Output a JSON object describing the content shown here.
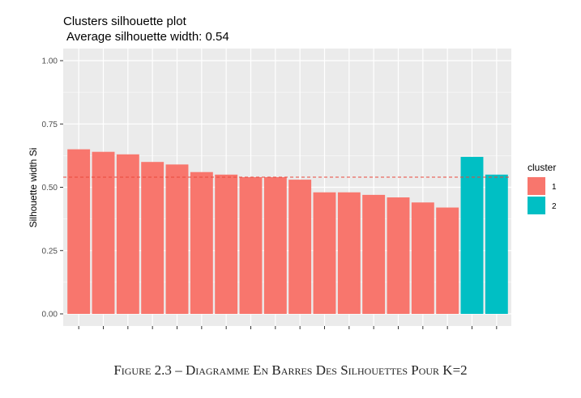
{
  "chart_data": {
    "type": "bar",
    "title": "Clusters silhouette plot",
    "subtitle": "Average silhouette width: 0.54",
    "xlabel": "",
    "ylabel": "Silhouette width Si",
    "ylim": [
      0,
      1
    ],
    "yticks": [
      "0.00",
      "0.25",
      "0.50",
      "0.75",
      "1.00"
    ],
    "ytick_values": [
      0,
      0.25,
      0.5,
      0.75,
      1.0
    ],
    "grid": true,
    "average_line": 0.54,
    "legend": {
      "title": "cluster",
      "position": "right",
      "entries": [
        "1",
        "2"
      ]
    },
    "colors": {
      "1": "#F8766D",
      "2": "#00BFC4",
      "average_line": "#E8483C",
      "panel": "#EBEBEB",
      "grid": "#FFFFFF"
    },
    "bars": [
      {
        "cluster": "1",
        "value": 0.65
      },
      {
        "cluster": "1",
        "value": 0.64
      },
      {
        "cluster": "1",
        "value": 0.63
      },
      {
        "cluster": "1",
        "value": 0.6
      },
      {
        "cluster": "1",
        "value": 0.59
      },
      {
        "cluster": "1",
        "value": 0.56
      },
      {
        "cluster": "1",
        "value": 0.55
      },
      {
        "cluster": "1",
        "value": 0.54
      },
      {
        "cluster": "1",
        "value": 0.54
      },
      {
        "cluster": "1",
        "value": 0.53
      },
      {
        "cluster": "1",
        "value": 0.48
      },
      {
        "cluster": "1",
        "value": 0.48
      },
      {
        "cluster": "1",
        "value": 0.47
      },
      {
        "cluster": "1",
        "value": 0.46
      },
      {
        "cluster": "1",
        "value": 0.44
      },
      {
        "cluster": "1",
        "value": 0.42
      },
      {
        "cluster": "2",
        "value": 0.62
      },
      {
        "cluster": "2",
        "value": 0.55
      }
    ]
  },
  "caption": {
    "label": "Figure 2.3",
    "separator": " – ",
    "text": "Diagramme En Barres Des Silhouettes Pour K=2"
  }
}
